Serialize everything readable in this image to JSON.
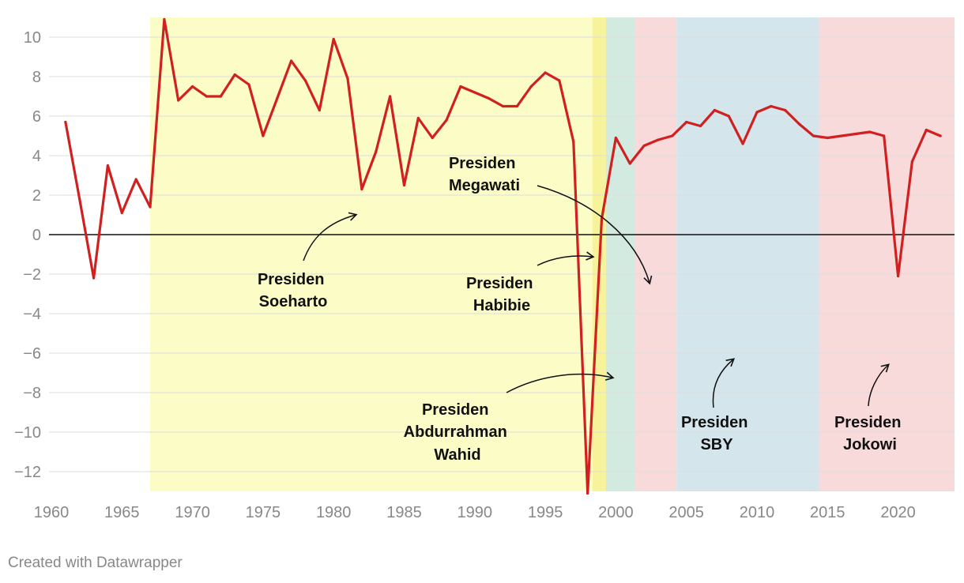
{
  "chart_data": {
    "type": "line",
    "title": "",
    "xlabel": "",
    "ylabel": "",
    "xlim": [
      1960,
      2024
    ],
    "ylim": [
      -13,
      11
    ],
    "x_ticks": [
      1960,
      1965,
      1970,
      1975,
      1980,
      1985,
      1990,
      1995,
      2000,
      2005,
      2010,
      2015,
      2020
    ],
    "y_ticks": [
      10,
      8,
      6,
      4,
      2,
      0,
      -2,
      -4,
      -6,
      -8,
      -10,
      -12
    ],
    "grid": true,
    "legend": "none",
    "series": [
      {
        "color": "#d0201f",
        "x": [
          1961,
          1962,
          1963,
          1964,
          1965,
          1966,
          1967,
          1968,
          1969,
          1970,
          1971,
          1972,
          1973,
          1974,
          1975,
          1976,
          1977,
          1978,
          1979,
          1980,
          1981,
          1982,
          1983,
          1984,
          1985,
          1986,
          1987,
          1988,
          1989,
          1990,
          1991,
          1992,
          1993,
          1994,
          1995,
          1996,
          1997,
          1998,
          1999,
          2000,
          2001,
          2002,
          2003,
          2004,
          2005,
          2006,
          2007,
          2008,
          2009,
          2010,
          2011,
          2012,
          2013,
          2014,
          2015,
          2016,
          2017,
          2018,
          2019,
          2020,
          2021,
          2022,
          2023
        ],
        "values": [
          5.7,
          1.8,
          -2.2,
          3.5,
          1.1,
          2.8,
          1.4,
          10.9,
          6.8,
          7.5,
          7.0,
          7.0,
          8.1,
          7.6,
          5.0,
          6.9,
          8.8,
          7.8,
          6.3,
          9.9,
          7.9,
          2.3,
          4.2,
          7.0,
          2.5,
          5.9,
          4.9,
          5.8,
          7.5,
          7.2,
          6.9,
          6.5,
          6.5,
          7.5,
          8.2,
          7.8,
          4.7,
          -13.1,
          0.8,
          4.9,
          3.6,
          4.5,
          4.8,
          5.0,
          5.7,
          5.5,
          6.3,
          6.0,
          4.6,
          6.2,
          6.5,
          6.3,
          5.6,
          5.0,
          4.9,
          5.0,
          5.1,
          5.2,
          5.0,
          -2.1,
          3.7,
          5.3,
          5.0
        ]
      }
    ],
    "bands": [
      {
        "from": 1967,
        "to": 1998.35,
        "color": "#fbfcc6"
      },
      {
        "from": 1998.35,
        "to": 1999.3,
        "color": "#f7f39a"
      },
      {
        "from": 1999.3,
        "to": 2001.35,
        "color": "#d3eae1"
      },
      {
        "from": 2001.35,
        "to": 2004.3,
        "color": "#f8dadb"
      },
      {
        "from": 2004.3,
        "to": 2014.4,
        "color": "#d4e6ec"
      },
      {
        "from": 2014.4,
        "to": 2024,
        "color": "#f8dadb"
      }
    ],
    "annotations": [
      {
        "lines": [
          "Presiden",
          "Soeharto"
        ]
      },
      {
        "lines": [
          "Presiden",
          "Megawati"
        ]
      },
      {
        "lines": [
          "Presiden",
          "Habibie"
        ]
      },
      {
        "lines": [
          "Presiden",
          "Abdurrahman",
          "Wahid"
        ]
      },
      {
        "lines": [
          "Presiden",
          "SBY"
        ]
      },
      {
        "lines": [
          "Presiden",
          "Jokowi"
        ]
      }
    ]
  },
  "credit": "Created with Datawrapper"
}
